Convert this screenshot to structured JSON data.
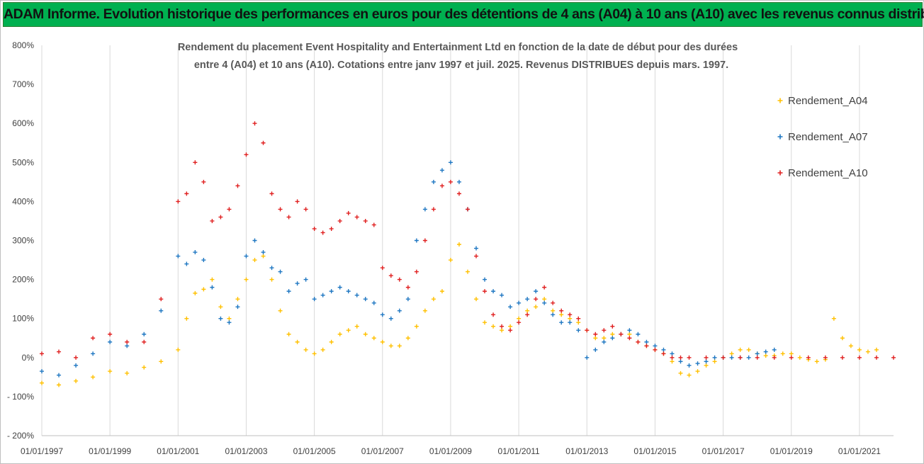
{
  "banner": {
    "title": "ADAM Informe. Evolution historique des performances en euros pour des détentions de 4 ans (A04) à 10 ans (A10) avec les revenus connus distribués",
    "color": "#00b050"
  },
  "chart_data": {
    "type": "scatter",
    "title": [
      "Rendement du placement Event Hospitality and Entertainment Ltd en fonction de la date de début pour des durées",
      "entre 4 (A04) et 10 ans (A10). Cotations entre janv 1997 et juil. 2025. Revenus DISTRIBUES depuis mars. 1997."
    ],
    "xlabel": "",
    "ylabel": "",
    "x_range": [
      "1997-01-01",
      "2022-01-01"
    ],
    "x_ticks": [
      "01/01/1997",
      "01/01/1999",
      "01/01/2001",
      "01/01/2003",
      "01/01/2005",
      "01/01/2007",
      "01/01/2009",
      "01/01/2011",
      "01/01/2013",
      "01/01/2015",
      "01/01/2017",
      "01/01/2019",
      "01/01/2021"
    ],
    "ylim": [
      -200,
      800
    ],
    "y_ticks": [
      -200,
      -100,
      0,
      100,
      200,
      300,
      400,
      500,
      600,
      700,
      800
    ],
    "y_tick_labels": [
      "- 200%",
      "- 100%",
      "0%",
      "100%",
      "200%",
      "300%",
      "400%",
      "500%",
      "600%",
      "700%",
      "800%"
    ],
    "grid": "vertical",
    "legend_position": "right",
    "marker": "+",
    "series": [
      {
        "name": "Rendement_A04",
        "color": "#ffc000",
        "x": [
          "1997-01",
          "1997-07",
          "1998-01",
          "1998-07",
          "1999-01",
          "1999-07",
          "2000-01",
          "2000-07",
          "2001-01",
          "2001-04",
          "2001-07",
          "2001-10",
          "2002-01",
          "2002-04",
          "2002-07",
          "2002-10",
          "2003-01",
          "2003-04",
          "2003-07",
          "2003-10",
          "2004-01",
          "2004-04",
          "2004-07",
          "2004-10",
          "2005-01",
          "2005-04",
          "2005-07",
          "2005-10",
          "2006-01",
          "2006-04",
          "2006-07",
          "2006-10",
          "2007-01",
          "2007-04",
          "2007-07",
          "2007-10",
          "2008-01",
          "2008-04",
          "2008-07",
          "2008-10",
          "2009-01",
          "2009-04",
          "2009-07",
          "2009-10",
          "2010-01",
          "2010-04",
          "2010-07",
          "2010-10",
          "2011-01",
          "2011-04",
          "2011-07",
          "2011-10",
          "2012-01",
          "2012-04",
          "2012-07",
          "2012-10",
          "2013-01",
          "2013-04",
          "2013-07",
          "2013-10",
          "2014-01",
          "2014-04",
          "2014-07",
          "2014-10",
          "2015-01",
          "2015-04",
          "2015-07",
          "2015-10",
          "2016-01",
          "2016-04",
          "2016-07",
          "2016-10",
          "2017-01",
          "2017-04",
          "2017-07",
          "2017-10",
          "2018-01",
          "2018-04",
          "2018-07",
          "2018-10",
          "2019-01",
          "2019-04",
          "2019-07",
          "2019-10",
          "2020-01",
          "2020-04",
          "2020-07",
          "2020-10",
          "2021-01",
          "2021-04",
          "2021-07"
        ],
        "y": [
          -65,
          -70,
          -60,
          -50,
          -35,
          -40,
          -25,
          -10,
          20,
          100,
          165,
          175,
          200,
          130,
          100,
          150,
          200,
          250,
          260,
          200,
          120,
          60,
          40,
          20,
          10,
          20,
          40,
          60,
          70,
          80,
          60,
          50,
          40,
          30,
          30,
          50,
          80,
          120,
          150,
          170,
          250,
          290,
          220,
          150,
          90,
          80,
          70,
          80,
          100,
          120,
          130,
          150,
          120,
          110,
          100,
          90,
          70,
          50,
          50,
          60,
          60,
          60,
          40,
          30,
          20,
          10,
          -10,
          -40,
          -45,
          -35,
          -20,
          -10,
          0,
          10,
          20,
          20,
          10,
          5,
          5,
          10,
          10,
          0,
          -5,
          -10,
          -5,
          100,
          50,
          30,
          20,
          15,
          20
        ]
      },
      {
        "name": "Rendement_A07",
        "color": "#1f77c2",
        "x": [
          "1997-01",
          "1997-07",
          "1998-01",
          "1998-07",
          "1999-01",
          "1999-07",
          "2000-01",
          "2000-07",
          "2001-01",
          "2001-04",
          "2001-07",
          "2001-10",
          "2002-01",
          "2002-04",
          "2002-07",
          "2002-10",
          "2003-01",
          "2003-04",
          "2003-07",
          "2003-10",
          "2004-01",
          "2004-04",
          "2004-07",
          "2004-10",
          "2005-01",
          "2005-04",
          "2005-07",
          "2005-10",
          "2006-01",
          "2006-04",
          "2006-07",
          "2006-10",
          "2007-01",
          "2007-04",
          "2007-07",
          "2007-10",
          "2008-01",
          "2008-04",
          "2008-07",
          "2008-10",
          "2009-01",
          "2009-04",
          "2009-07",
          "2009-10",
          "2010-01",
          "2010-04",
          "2010-07",
          "2010-10",
          "2011-01",
          "2011-04",
          "2011-07",
          "2011-10",
          "2012-01",
          "2012-04",
          "2012-07",
          "2012-10",
          "2013-01",
          "2013-04",
          "2013-07",
          "2013-10",
          "2014-01",
          "2014-04",
          "2014-07",
          "2014-10",
          "2015-01",
          "2015-04",
          "2015-07",
          "2015-10",
          "2016-01",
          "2016-04",
          "2016-07",
          "2016-10",
          "2017-01",
          "2017-04",
          "2017-07",
          "2017-10",
          "2018-01",
          "2018-04",
          "2018-07"
        ],
        "y": [
          -35,
          -45,
          -20,
          10,
          40,
          30,
          60,
          120,
          260,
          240,
          270,
          250,
          180,
          100,
          90,
          130,
          260,
          300,
          270,
          230,
          220,
          170,
          190,
          200,
          150,
          160,
          170,
          180,
          170,
          160,
          150,
          140,
          110,
          100,
          120,
          150,
          300,
          380,
          450,
          480,
          500,
          450,
          380,
          280,
          200,
          170,
          160,
          130,
          140,
          150,
          170,
          140,
          110,
          90,
          90,
          70,
          0,
          20,
          40,
          50,
          60,
          70,
          60,
          40,
          30,
          20,
          10,
          -10,
          -20,
          -15,
          -10,
          0,
          0,
          0,
          0,
          0,
          10,
          15,
          20
        ]
      },
      {
        "name": "Rendement_A10",
        "color": "#e02020",
        "x": [
          "1997-01",
          "1997-07",
          "1998-01",
          "1998-07",
          "1999-01",
          "1999-07",
          "2000-01",
          "2000-07",
          "2001-01",
          "2001-04",
          "2001-07",
          "2001-10",
          "2002-01",
          "2002-04",
          "2002-07",
          "2002-10",
          "2003-01",
          "2003-04",
          "2003-07",
          "2003-10",
          "2004-01",
          "2004-04",
          "2004-07",
          "2004-10",
          "2005-01",
          "2005-04",
          "2005-07",
          "2005-10",
          "2006-01",
          "2006-04",
          "2006-07",
          "2006-10",
          "2007-01",
          "2007-04",
          "2007-07",
          "2007-10",
          "2008-01",
          "2008-04",
          "2008-07",
          "2008-10",
          "2009-01",
          "2009-04",
          "2009-07",
          "2009-10",
          "2010-01",
          "2010-04",
          "2010-07",
          "2010-10",
          "2011-01",
          "2011-04",
          "2011-07",
          "2011-10",
          "2012-01",
          "2012-04",
          "2012-07",
          "2012-10",
          "2013-01",
          "2013-04",
          "2013-07",
          "2013-10",
          "2014-01",
          "2014-04",
          "2014-07",
          "2014-10",
          "2015-01",
          "2015-04",
          "2015-07",
          "2015-10",
          "2016-01",
          "2016-07",
          "2017-01",
          "2017-07",
          "2018-01",
          "2018-07",
          "2019-01",
          "2019-07",
          "2020-01",
          "2020-07",
          "2021-01",
          "2021-07",
          "2022-01"
        ],
        "y": [
          10,
          15,
          0,
          50,
          60,
          40,
          40,
          150,
          400,
          420,
          500,
          450,
          350,
          360,
          380,
          440,
          520,
          600,
          550,
          420,
          380,
          360,
          400,
          380,
          330,
          320,
          330,
          350,
          370,
          360,
          350,
          340,
          230,
          210,
          200,
          180,
          220,
          300,
          380,
          440,
          450,
          420,
          380,
          260,
          170,
          110,
          80,
          70,
          90,
          110,
          150,
          180,
          140,
          120,
          110,
          100,
          70,
          60,
          70,
          80,
          60,
          50,
          40,
          30,
          20,
          10,
          0,
          0,
          0,
          0,
          0,
          0,
          0,
          0,
          0,
          0,
          0,
          0,
          0,
          0,
          0
        ]
      }
    ]
  }
}
